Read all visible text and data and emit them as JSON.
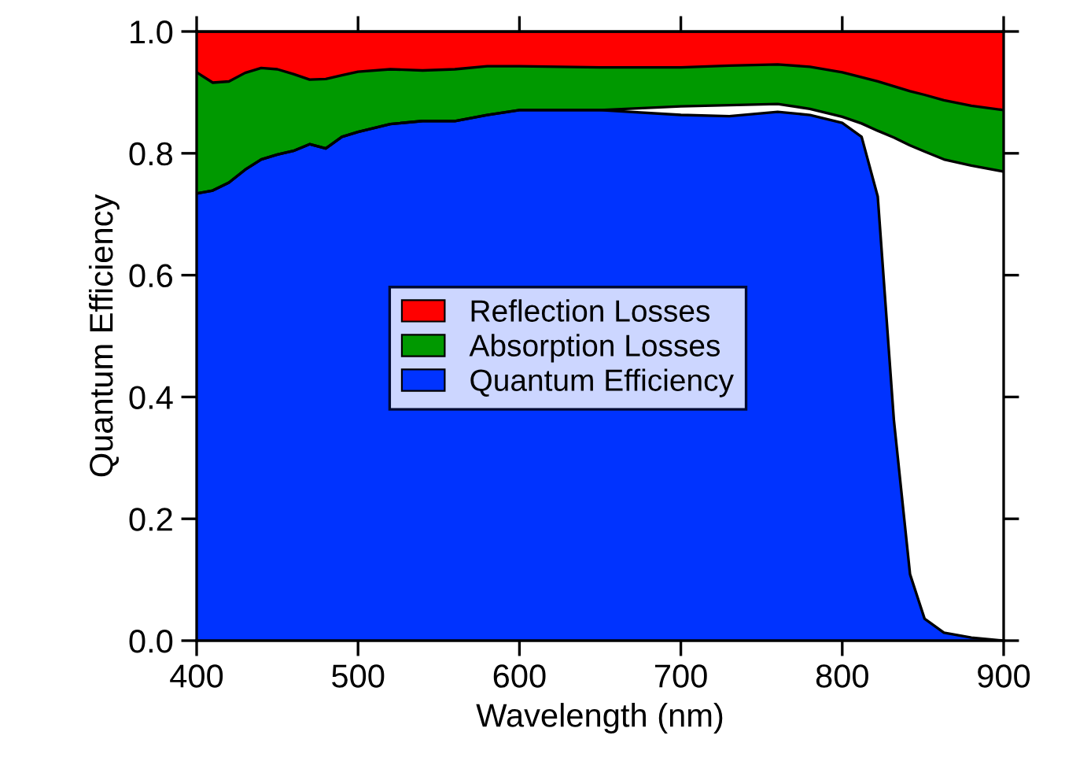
{
  "chart_data": {
    "type": "area",
    "stacked": true,
    "xlabel": "Wavelength (nm)",
    "ylabel": "Quantum Efficiency",
    "x": [
      400,
      410,
      420,
      430,
      440,
      450,
      460,
      470,
      480,
      490,
      500,
      520,
      540,
      560,
      580,
      600,
      650,
      700,
      730,
      760,
      780,
      800,
      812,
      822,
      832,
      842,
      851,
      863,
      880,
      900
    ],
    "series": [
      {
        "name": "Quantum Efficiency",
        "color": "#0033ff",
        "values": [
          0.734,
          0.739,
          0.752,
          0.773,
          0.79,
          0.798,
          0.804,
          0.815,
          0.808,
          0.827,
          0.835,
          0.848,
          0.853,
          0.853,
          0.863,
          0.871,
          0.871,
          0.863,
          0.861,
          0.868,
          0.863,
          0.85,
          0.827,
          0.729,
          0.362,
          0.109,
          0.036,
          0.013,
          0.005,
          0.0
        ]
      },
      {
        "color": "#ffffff",
        "values": [
          0,
          0,
          0,
          0,
          0,
          0,
          0,
          0,
          0,
          0,
          0,
          0,
          0,
          0,
          0,
          0,
          0,
          0.014,
          0.018,
          0.013,
          0.01,
          0.01,
          0.022,
          0.108,
          0.464,
          0.704,
          0.767,
          0.777,
          0.775,
          0.77
        ]
      },
      {
        "name": "Absorption Losses",
        "color": "#009900",
        "values": [
          0.199,
          0.177,
          0.166,
          0.159,
          0.15,
          0.14,
          0.126,
          0.106,
          0.114,
          0.101,
          0.099,
          0.09,
          0.083,
          0.085,
          0.08,
          0.072,
          0.07,
          0.064,
          0.065,
          0.065,
          0.069,
          0.073,
          0.076,
          0.081,
          0.084,
          0.089,
          0.093,
          0.097,
          0.098,
          0.101
        ]
      },
      {
        "name": "Reflection Losses",
        "color": "#ff0000",
        "values": [
          0.067,
          0.084,
          0.082,
          0.068,
          0.06,
          0.062,
          0.07,
          0.079,
          0.078,
          0.072,
          0.066,
          0.062,
          0.064,
          0.062,
          0.057,
          0.057,
          0.059,
          0.059,
          0.056,
          0.054,
          0.058,
          0.067,
          0.075,
          0.082,
          0.09,
          0.098,
          0.104,
          0.113,
          0.122,
          0.129
        ]
      }
    ],
    "xlim": [
      400,
      900
    ],
    "xticks": [
      400,
      500,
      600,
      700,
      800,
      900
    ],
    "ylim": [
      0,
      1
    ],
    "yticks": [
      {
        "value": 0,
        "label": "0.0"
      },
      {
        "value": 0.2,
        "label": "0.2"
      },
      {
        "value": 0.4,
        "label": "0.4"
      },
      {
        "value": 0.6,
        "label": "0.6"
      },
      {
        "value": 0.8,
        "label": "0.8"
      },
      {
        "value": 1,
        "label": "1.0"
      }
    ],
    "legend": "center",
    "grid": false
  }
}
